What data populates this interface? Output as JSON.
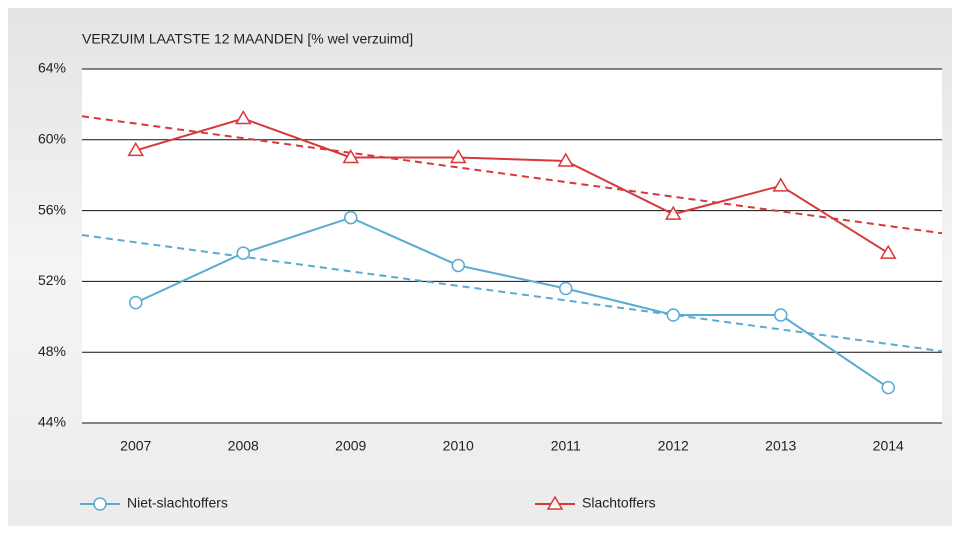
{
  "chart_data": {
    "type": "line",
    "title": "VERZUIM LAATSTE 12 MAANDEN [% wel verzuimd]",
    "categories": [
      "2007",
      "2008",
      "2009",
      "2010",
      "2011",
      "2012",
      "2013",
      "2014"
    ],
    "series": [
      {
        "name": "Niet-slachtoffers",
        "color": "#5aaad2",
        "marker": "circle",
        "values": [
          50.8,
          53.6,
          55.6,
          52.9,
          51.6,
          50.1,
          50.1,
          46.0
        ]
      },
      {
        "name": "Slachtoffers",
        "color": "#d9383a",
        "marker": "triangle",
        "values": [
          59.4,
          61.2,
          59.0,
          59.0,
          58.8,
          55.8,
          57.4,
          53.6
        ]
      }
    ],
    "trendline": "linear",
    "ylim": [
      44,
      64
    ],
    "yticks": [
      {
        "value": 44,
        "label": "44%"
      },
      {
        "value": 48,
        "label": "48%"
      },
      {
        "value": 52,
        "label": "52%"
      },
      {
        "value": 56,
        "label": "56%"
      },
      {
        "value": 60,
        "label": "60%"
      },
      {
        "value": 64,
        "label": "64%"
      }
    ],
    "grid": true,
    "legend": "bottom"
  }
}
